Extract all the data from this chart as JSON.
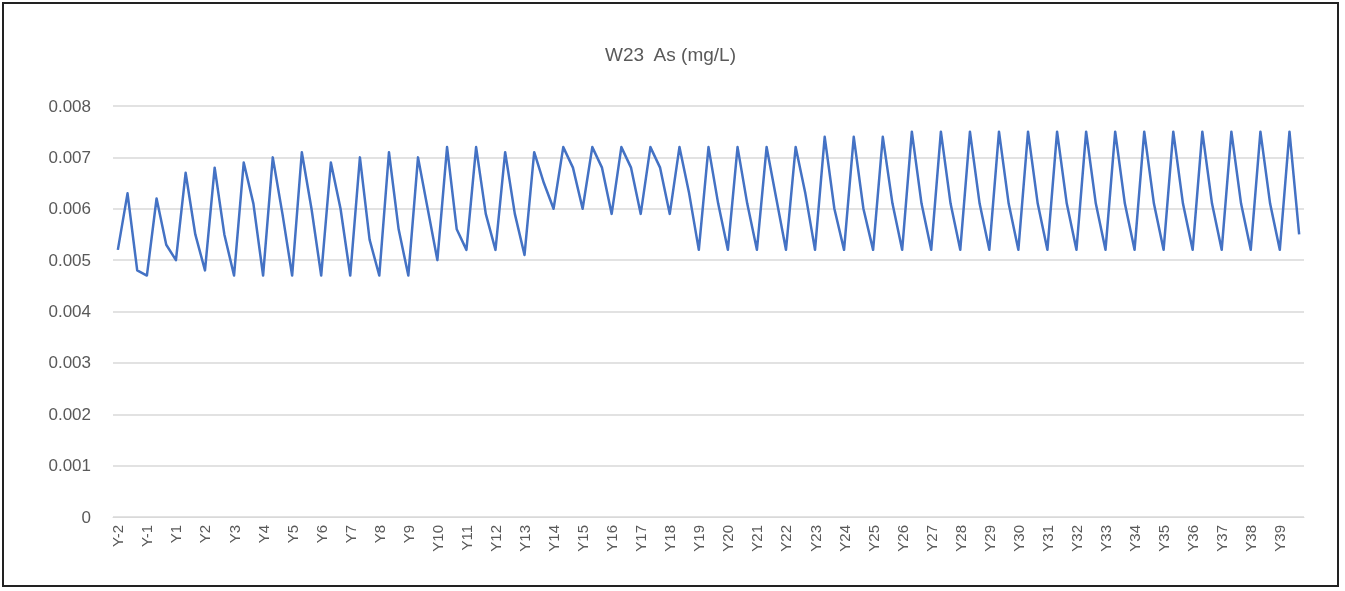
{
  "chart_data": {
    "type": "line",
    "title": "W23  As (mg/L)",
    "categories": [
      "Y-2",
      null,
      null,
      "Y-1",
      null,
      null,
      "Y1",
      null,
      null,
      "Y2",
      null,
      null,
      "Y3",
      null,
      null,
      "Y4",
      null,
      null,
      "Y5",
      null,
      null,
      "Y6",
      null,
      null,
      "Y7",
      null,
      null,
      "Y8",
      null,
      null,
      "Y9",
      null,
      null,
      "Y10",
      null,
      null,
      "Y11",
      null,
      null,
      "Y12",
      null,
      null,
      "Y13",
      null,
      null,
      "Y14",
      null,
      null,
      "Y15",
      null,
      null,
      "Y16",
      null,
      null,
      "Y17",
      null,
      null,
      "Y18",
      null,
      null,
      "Y19",
      null,
      null,
      "Y20",
      null,
      null,
      "Y21",
      null,
      null,
      "Y22",
      null,
      null,
      "Y23",
      null,
      null,
      "Y24",
      null,
      null,
      "Y25",
      null,
      null,
      "Y26",
      null,
      null,
      "Y27",
      null,
      null,
      "Y28",
      null,
      null,
      "Y29",
      null,
      null,
      "Y30",
      null,
      null,
      "Y31",
      null,
      null,
      "Y32",
      null,
      null,
      "Y33",
      null,
      null,
      "Y34",
      null,
      null,
      "Y35",
      null,
      null,
      "Y36",
      null,
      null,
      "Y37",
      null,
      null,
      "Y38",
      null,
      null,
      "Y39",
      null,
      null
    ],
    "series": [
      {
        "color": "#4472c4",
        "values": [
          0.0052,
          0.0063,
          0.0048,
          0.0047,
          0.0062,
          0.0053,
          0.005,
          0.0067,
          0.0055,
          0.0048,
          0.0068,
          0.0055,
          0.0047,
          0.0069,
          0.0061,
          0.0047,
          0.007,
          0.0059,
          0.0047,
          0.0071,
          0.006,
          0.0047,
          0.0069,
          0.006,
          0.0047,
          0.007,
          0.0054,
          0.0047,
          0.0071,
          0.0056,
          0.0047,
          0.007,
          0.006,
          0.005,
          0.0072,
          0.0056,
          0.0052,
          0.0072,
          0.0059,
          0.0052,
          0.0071,
          0.0059,
          0.0051,
          0.0071,
          0.0065,
          0.006,
          0.0072,
          0.0068,
          0.006,
          0.0072,
          0.0068,
          0.0059,
          0.0072,
          0.0068,
          0.0059,
          0.0072,
          0.0068,
          0.0059,
          0.0072,
          0.0063,
          0.0052,
          0.0072,
          0.0061,
          0.0052,
          0.0072,
          0.0061,
          0.0052,
          0.0072,
          0.0062,
          0.0052,
          0.0072,
          0.0063,
          0.0052,
          0.0074,
          0.006,
          0.0052,
          0.0074,
          0.006,
          0.0052,
          0.0074,
          0.0061,
          0.0052,
          0.0075,
          0.0061,
          0.0052,
          0.0075,
          0.0061,
          0.0052,
          0.0075,
          0.0061,
          0.0052,
          0.0075,
          0.0061,
          0.0052,
          0.0075,
          0.0061,
          0.0052,
          0.0075,
          0.0061,
          0.0052,
          0.0075,
          0.0061,
          0.0052,
          0.0075,
          0.0061,
          0.0052,
          0.0075,
          0.0061,
          0.0052,
          0.0075,
          0.0061,
          0.0052,
          0.0075,
          0.0061,
          0.0052,
          0.0075,
          0.0061,
          0.0052,
          0.0075,
          0.0061,
          0.0052,
          0.0075,
          0.0055
        ]
      }
    ],
    "ylim": [
      0,
      0.008
    ],
    "yticks": [
      0,
      0.001,
      0.002,
      0.003,
      0.004,
      0.005,
      0.006,
      0.007,
      0.008
    ],
    "grid": "y"
  }
}
